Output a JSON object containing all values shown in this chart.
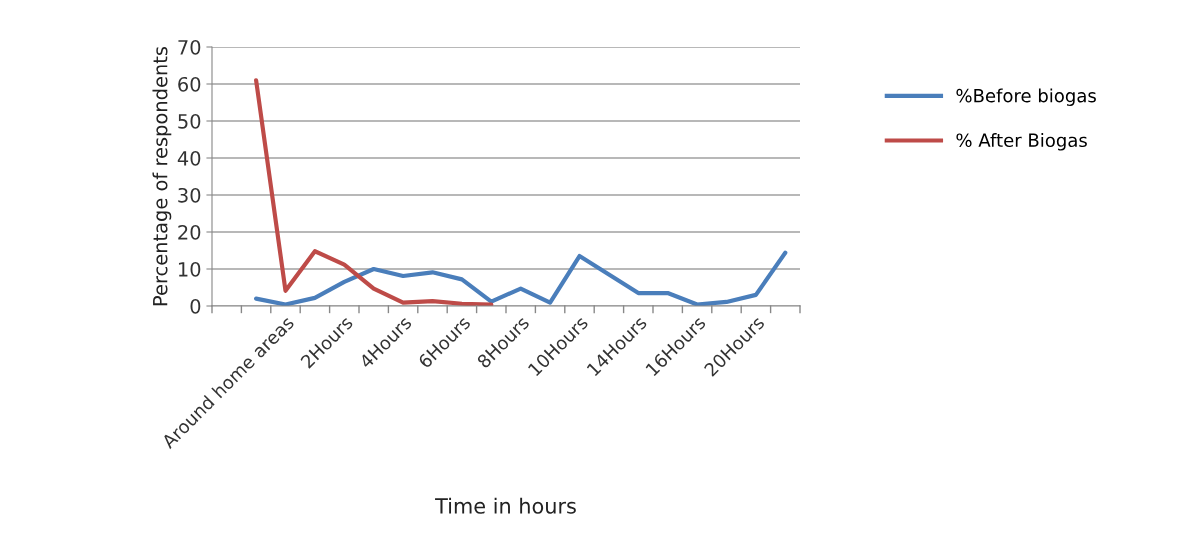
{
  "chart_data": {
    "type": "line",
    "xlabel": "Time in hours",
    "ylabel": "Percentage of respondents",
    "categories": [
      null,
      null,
      "Around home areas",
      null,
      "2Hours",
      null,
      "4Hours",
      null,
      "6Hours",
      null,
      "8Hours",
      null,
      "10Hours",
      null,
      "14Hours",
      null,
      "16Hours",
      null,
      "20Hours",
      null
    ],
    "series": [
      {
        "name": "%Before biogas",
        "color": "#4a7ebb",
        "values": [
          null,
          2.0,
          0.4,
          2.2,
          6.5,
          10.0,
          8.1,
          9.1,
          7.2,
          1.2,
          4.7,
          0.9,
          13.5,
          8.5,
          3.5,
          3.5,
          0.4,
          1.1,
          3.0,
          14.4
        ]
      },
      {
        "name": "% After Biogas",
        "color": "#be4b48",
        "values": [
          null,
          61,
          4.1,
          14.8,
          11.2,
          4.7,
          0.9,
          1.3,
          0.6,
          0.4,
          null,
          null,
          null,
          null,
          null,
          null,
          null,
          null,
          null,
          null
        ]
      }
    ],
    "ylim": [
      0,
      70
    ],
    "yticks": [
      0,
      10,
      20,
      30,
      40,
      50,
      60,
      70
    ],
    "grid": "y",
    "legend": "right",
    "marker": "none",
    "line_style": "solid"
  }
}
